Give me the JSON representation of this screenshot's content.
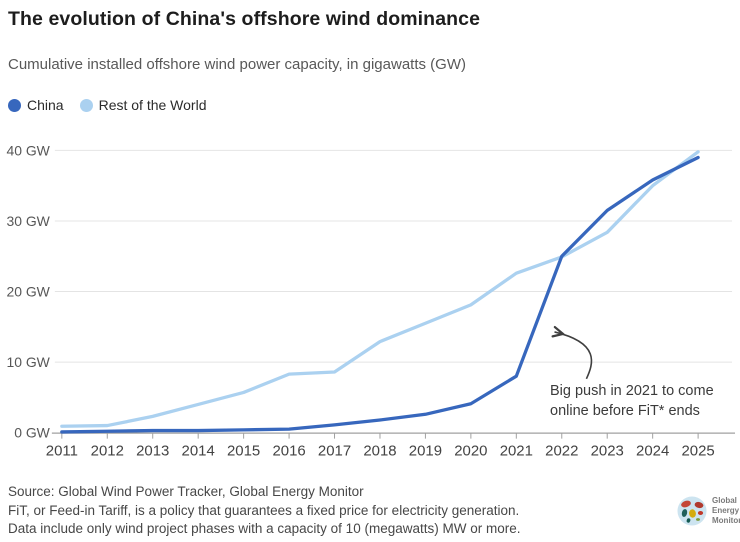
{
  "header": {
    "title": "The evolution of China's offshore wind dominance",
    "subtitle": "Cumulative installed offshore wind power capacity, in gigawatts (GW)"
  },
  "legend": [
    {
      "label": "China",
      "color": "#3767bd"
    },
    {
      "label": "Rest of the World",
      "color": "#abd1f0"
    }
  ],
  "chart_data": {
    "type": "line",
    "x": [
      2011,
      2012,
      2013,
      2014,
      2015,
      2016,
      2017,
      2018,
      2019,
      2020,
      2021,
      2022,
      2023,
      2024,
      2025
    ],
    "series": [
      {
        "name": "Rest of the World",
        "color": "#abd1f0",
        "values": [
          0.9,
          1.0,
          2.3,
          4.0,
          5.7,
          8.3,
          8.6,
          12.9,
          15.5,
          18.1,
          22.6,
          24.9,
          28.4,
          35.0,
          39.8
        ]
      },
      {
        "name": "China",
        "color": "#3767bd",
        "values": [
          0.1,
          0.2,
          0.3,
          0.3,
          0.4,
          0.5,
          1.1,
          1.8,
          2.6,
          4.1,
          8.0,
          25.0,
          31.5,
          35.8,
          39.0
        ]
      }
    ],
    "yticks": [
      0,
      10,
      20,
      30,
      40
    ],
    "ytick_suffix": " GW",
    "ylim": [
      0,
      42.5
    ],
    "grid": "horizontal",
    "legend_position": "top-left",
    "annotation": {
      "lines": [
        "Big push in 2021 to come",
        "online before FiT* ends"
      ]
    },
    "colors": {
      "gridline": "#e4e4e4",
      "axis": "#a0a0a0",
      "ytick_label": "#575757",
      "xtick_label": "#434343",
      "annotation_arrow": "#3f3f3f"
    }
  },
  "footer": {
    "lines": [
      "Source: Global Wind Power Tracker, Global Energy Monitor",
      "FiT, or Feed-in Tariff, is a policy that guarantees a fixed price for electricity generation.",
      "Data include only wind project phases with a capacity of 10 (megawatts) MW or more."
    ],
    "logo": [
      "Global",
      "Energy",
      "Monitor"
    ]
  }
}
